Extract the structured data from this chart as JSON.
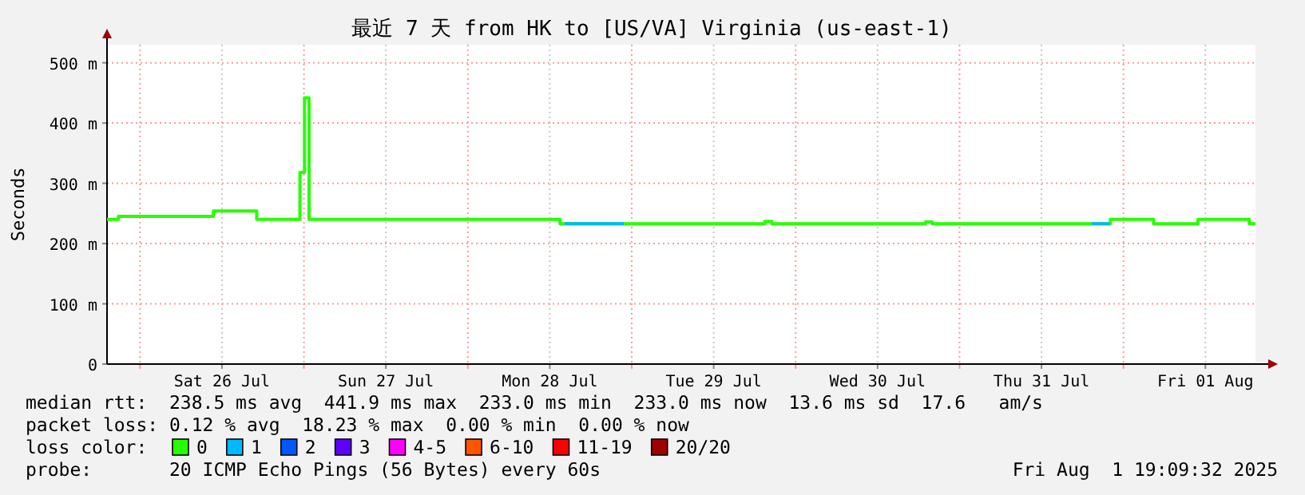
{
  "chart_data": {
    "type": "step",
    "title": "最近 7 天 from HK to [US/VA] Virginia (us-east-1)",
    "ylabel": "Seconds",
    "xlim": [
      "2025-07-25T19:10",
      "2025-08-01T19:20"
    ],
    "ylim": [
      0,
      530
    ],
    "xticks": [
      {
        "value": "2025-07-26T00:00",
        "label": null
      },
      {
        "value": "2025-07-26T12:00",
        "label": "Sat 26 Jul"
      },
      {
        "value": "2025-07-27T00:00",
        "label": null
      },
      {
        "value": "2025-07-27T12:00",
        "label": "Sun 27 Jul"
      },
      {
        "value": "2025-07-28T00:00",
        "label": null
      },
      {
        "value": "2025-07-28T12:00",
        "label": "Mon 28 Jul"
      },
      {
        "value": "2025-07-29T00:00",
        "label": null
      },
      {
        "value": "2025-07-29T12:00",
        "label": "Tue 29 Jul"
      },
      {
        "value": "2025-07-30T00:00",
        "label": null
      },
      {
        "value": "2025-07-30T12:00",
        "label": "Wed 30 Jul"
      },
      {
        "value": "2025-07-31T00:00",
        "label": null
      },
      {
        "value": "2025-07-31T12:00",
        "label": "Thu 31 Jul"
      },
      {
        "value": "2025-08-01T00:00",
        "label": null
      },
      {
        "value": "2025-08-01T12:00",
        "label": "Fri 01 Aug"
      }
    ],
    "yticks": [
      0,
      {
        "value": 100,
        "label": "100 m"
      },
      {
        "value": 200,
        "label": "200 m"
      },
      {
        "value": 300,
        "label": "300 m"
      },
      {
        "value": 400,
        "label": "400 m"
      },
      {
        "value": 500,
        "label": "500 m"
      }
    ],
    "grid": true,
    "legend": "bottom",
    "series": [
      {
        "name": "0",
        "color": "#26ff00",
        "x": [
          "2025-07-25T19:10",
          "2025-07-25T20:50",
          "2025-07-26T10:45",
          "2025-07-26T17:05",
          "2025-07-26T23:25",
          "2025-07-27T00:05",
          "2025-07-27T00:45",
          "2025-07-28T13:30",
          "2025-07-29T19:30",
          "2025-07-29T20:30",
          "2025-07-29T23:00",
          "2025-07-30T19:00",
          "2025-07-30T20:00",
          "2025-07-31T22:05",
          "2025-08-01T04:25",
          "2025-08-01T10:55",
          "2025-08-01T18:25",
          "2025-08-01T19:20"
        ],
        "values": [
          240,
          245,
          254,
          240,
          318,
          442,
          240,
          233,
          237,
          233,
          233,
          236,
          233,
          240,
          233,
          240,
          233,
          233
        ]
      },
      {
        "name": "1",
        "color": "#00b8ff",
        "type": "line",
        "x": [
          "2025-07-28T14:10",
          "2025-07-28T22:50",
          null,
          "2025-07-31T19:20",
          "2025-07-31T22:00"
        ],
        "values": [
          233,
          233,
          null,
          233,
          233
        ]
      },
      {
        "name": "2",
        "color": "#0059ff"
      },
      {
        "name": "3",
        "color": "#5e00ff"
      },
      {
        "name": "4-5",
        "color": "#ff00ff"
      },
      {
        "name": "6-10",
        "color": "#ff5500"
      },
      {
        "name": "11-19",
        "color": "#ff0000"
      },
      {
        "name": "20/20",
        "color": "#a10000"
      }
    ],
    "annotations": [
      "median rtt:  238.5 ms avg  441.9 ms max  233.0 ms min  233.0 ms now  13.6 ms sd  17.6   am/s",
      "packet loss: 0.12 % avg  18.23 % max  0.00 % min  0.00 % now",
      "loss color:",
      "probe:       20 ICMP Echo Pings (56 Bytes) every 60s",
      "Fri Aug  1 19:09:32 2025"
    ]
  }
}
